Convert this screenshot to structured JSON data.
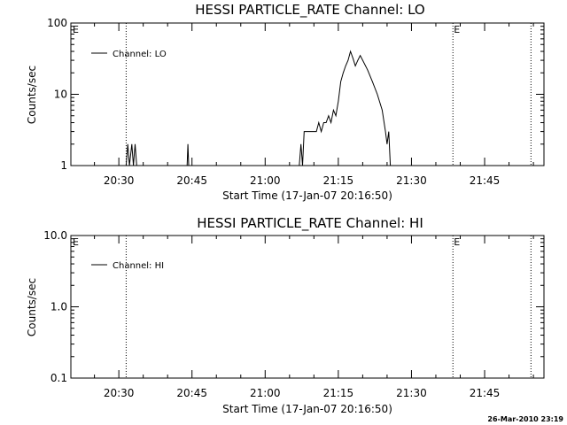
{
  "chart_data": [
    {
      "type": "line",
      "title": "HESSI PARTICLE_RATE Channel: LO",
      "xlabel": "Start Time (17-Jan-07 20:16:50)",
      "ylabel": "Counts/sec",
      "y_scale": "log",
      "xlim": [
        "20:20:10",
        "21:57:10"
      ],
      "ylim": [
        1,
        100
      ],
      "xticks": [
        "20:30",
        "20:45",
        "21:00",
        "21:15",
        "21:30",
        "21:45"
      ],
      "yticks": [
        "1",
        "10",
        "100"
      ],
      "legend_position": "top-left",
      "markers": [
        {
          "time": "20:31:30",
          "label": ""
        },
        {
          "time": "21:38:30",
          "label": "E"
        },
        {
          "time": "21:54:30",
          "label": ""
        }
      ],
      "corner_label": "E",
      "series": [
        {
          "name": "Channel: LO",
          "points": [
            [
              "20:20:10",
              1
            ],
            [
              "20:31:30",
              1
            ],
            [
              "20:31:50",
              2
            ],
            [
              "20:32:10",
              1
            ],
            [
              "20:32:40",
              2
            ],
            [
              "20:33:00",
              1
            ],
            [
              "20:33:20",
              2
            ],
            [
              "20:33:40",
              1
            ],
            [
              "20:44:00",
              1
            ],
            [
              "20:44:10",
              2
            ],
            [
              "20:44:20",
              1
            ],
            [
              "21:07:00",
              1
            ],
            [
              "21:07:20",
              2
            ],
            [
              "21:07:40",
              1
            ],
            [
              "21:08:00",
              3
            ],
            [
              "21:10:30",
              3
            ],
            [
              "21:11:00",
              4
            ],
            [
              "21:11:30",
              3
            ],
            [
              "21:12:00",
              4
            ],
            [
              "21:12:30",
              4
            ],
            [
              "21:13:00",
              5
            ],
            [
              "21:13:30",
              4
            ],
            [
              "21:14:00",
              6
            ],
            [
              "21:14:30",
              5
            ],
            [
              "21:15:00",
              8
            ],
            [
              "21:15:30",
              15
            ],
            [
              "21:16:00",
              20
            ],
            [
              "21:16:30",
              25
            ],
            [
              "21:17:00",
              30
            ],
            [
              "21:17:30",
              40
            ],
            [
              "21:18:00",
              32
            ],
            [
              "21:18:30",
              25
            ],
            [
              "21:19:00",
              30
            ],
            [
              "21:19:30",
              35
            ],
            [
              "21:20:00",
              30
            ],
            [
              "21:21:00",
              22
            ],
            [
              "21:22:00",
              15
            ],
            [
              "21:23:00",
              10
            ],
            [
              "21:24:00",
              6
            ],
            [
              "21:24:40",
              3
            ],
            [
              "21:25:00",
              2
            ],
            [
              "21:25:20",
              3
            ],
            [
              "21:25:40",
              1
            ],
            [
              "21:57:10",
              1
            ]
          ]
        }
      ]
    },
    {
      "type": "line",
      "title": "HESSI PARTICLE_RATE Channel: HI",
      "xlabel": "Start Time (17-Jan-07 20:16:50)",
      "ylabel": "Counts/sec",
      "y_scale": "log",
      "xlim": [
        "20:20:10",
        "21:57:10"
      ],
      "ylim": [
        0.1,
        10
      ],
      "xticks": [
        "20:30",
        "20:45",
        "21:00",
        "21:15",
        "21:30",
        "21:45"
      ],
      "yticks": [
        "0.1",
        "1.0",
        "10.0"
      ],
      "legend_position": "top-left",
      "markers": [
        {
          "time": "20:31:30",
          "label": ""
        },
        {
          "time": "21:38:30",
          "label": "E"
        },
        {
          "time": "21:54:30",
          "label": ""
        }
      ],
      "corner_label": "E",
      "series": [
        {
          "name": "Channel: HI",
          "points": []
        }
      ]
    }
  ],
  "timestamp": "26-Mar-2010 23:19"
}
